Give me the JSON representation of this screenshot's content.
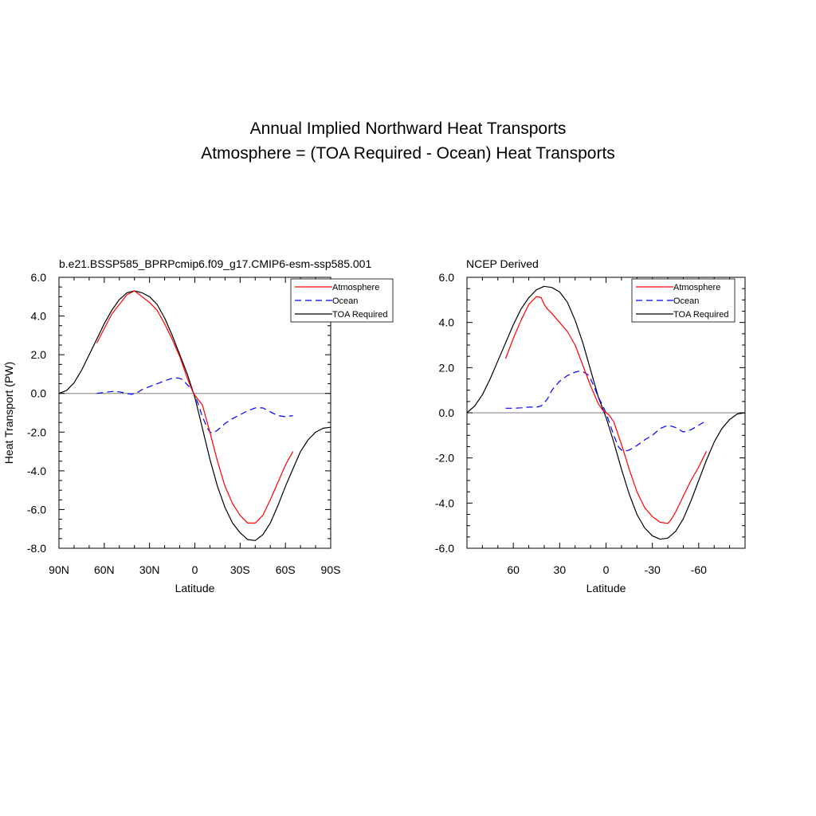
{
  "figure": {
    "title_line1": "Annual Implied Northward Heat Transports",
    "title_line2": "Atmosphere = (TOA Required - Ocean) Heat Transports"
  },
  "chart_data": [
    {
      "type": "line",
      "title": "b.e21.BSSP585_BPRPcmip6.f09_g17.CMIP6-esm-ssp585.001",
      "xlabel": "Latitude",
      "ylabel": "Heat Transport (PW)",
      "xlim": [
        90,
        -90
      ],
      "ylim": [
        -8,
        6
      ],
      "xticks": [
        90,
        60,
        30,
        0,
        -30,
        -60,
        -90
      ],
      "xtick_labels": [
        "90N",
        "60N",
        "30N",
        "0",
        "30S",
        "60S",
        "90S"
      ],
      "yticks": [
        6,
        4,
        2,
        0,
        -2,
        -4,
        -6,
        -8
      ],
      "ytick_labels": [
        "6.0",
        "4.0",
        "2.0",
        "0.0",
        "-2.0",
        "-4.0",
        "-6.0",
        "-8.0"
      ],
      "zero_line": true,
      "legend_position": "top-right",
      "series": [
        {
          "name": "Atmosphere",
          "color": "#ff0000",
          "dash": "solid",
          "x": [
            65,
            55,
            45,
            40,
            35,
            30,
            25,
            20,
            15,
            10,
            5,
            2,
            0,
            -5,
            -10,
            -15,
            -20,
            -25,
            -30,
            -35,
            -40,
            -45,
            -50,
            -55,
            -60,
            -65
          ],
          "y": [
            2.6,
            4.1,
            5.1,
            5.3,
            5.0,
            4.7,
            4.3,
            3.6,
            2.8,
            1.9,
            0.8,
            0.2,
            -0.1,
            -0.6,
            -2.0,
            -3.5,
            -4.8,
            -5.7,
            -6.3,
            -6.7,
            -6.7,
            -6.3,
            -5.5,
            -4.6,
            -3.7,
            -3.0
          ]
        },
        {
          "name": "Ocean",
          "color": "#0000ff",
          "dash": "dashed",
          "x": [
            65,
            60,
            55,
            50,
            45,
            42,
            38,
            35,
            30,
            25,
            20,
            15,
            12,
            10,
            8,
            5,
            2,
            0,
            -2,
            -5,
            -8,
            -10,
            -12,
            -15,
            -20,
            -25,
            -30,
            -35,
            -40,
            -45,
            -50,
            -55,
            -60,
            -65
          ],
          "y": [
            0.0,
            0.05,
            0.1,
            0.08,
            0.0,
            -0.05,
            0.05,
            0.2,
            0.35,
            0.5,
            0.65,
            0.78,
            0.8,
            0.78,
            0.7,
            0.45,
            0.2,
            -0.1,
            -0.5,
            -1.2,
            -1.75,
            -2.0,
            -2.05,
            -1.9,
            -1.55,
            -1.3,
            -1.1,
            -0.9,
            -0.75,
            -0.75,
            -0.95,
            -1.15,
            -1.2,
            -1.15
          ]
        },
        {
          "name": "TOA Required",
          "color": "#000000",
          "dash": "solid",
          "x": [
            90,
            85,
            80,
            75,
            70,
            65,
            60,
            55,
            50,
            45,
            40,
            35,
            30,
            25,
            20,
            15,
            10,
            5,
            0,
            -5,
            -10,
            -15,
            -20,
            -25,
            -30,
            -35,
            -40,
            -45,
            -50,
            -55,
            -60,
            -65,
            -70,
            -75,
            -80,
            -85,
            -90
          ],
          "y": [
            0.0,
            0.15,
            0.55,
            1.2,
            2.0,
            2.8,
            3.6,
            4.3,
            4.85,
            5.2,
            5.3,
            5.2,
            5.0,
            4.6,
            3.9,
            3.0,
            2.0,
            1.0,
            -0.2,
            -1.8,
            -3.4,
            -4.8,
            -5.9,
            -6.7,
            -7.2,
            -7.55,
            -7.6,
            -7.3,
            -6.7,
            -5.8,
            -4.8,
            -3.9,
            -3.0,
            -2.4,
            -2.0,
            -1.8,
            -1.75
          ]
        }
      ]
    },
    {
      "type": "line",
      "title": "NCEP Derived",
      "xlabel": "Latitude",
      "ylabel": "",
      "xlim": [
        90,
        -90
      ],
      "ylim": [
        -6,
        6
      ],
      "xticks": [
        60,
        30,
        0,
        -30,
        -60
      ],
      "xtick_labels": [
        "60",
        "30",
        "0",
        "-30",
        "-60"
      ],
      "yticks": [
        6,
        4,
        2,
        0,
        -2,
        -4,
        -6
      ],
      "ytick_labels": [
        "6.0",
        "4.0",
        "2.0",
        "0.0",
        "-2.0",
        "-4.0",
        "-6.0"
      ],
      "zero_line": true,
      "legend_position": "top-right",
      "series": [
        {
          "name": "Atmosphere",
          "color": "#ff0000",
          "dash": "solid",
          "x": [
            65,
            60,
            55,
            50,
            45,
            42,
            40,
            38,
            35,
            30,
            25,
            20,
            15,
            10,
            5,
            2,
            0,
            -2,
            -5,
            -10,
            -15,
            -20,
            -25,
            -30,
            -35,
            -40,
            -42,
            -45,
            -50,
            -55,
            -60,
            -65
          ],
          "y": [
            2.4,
            3.3,
            4.1,
            4.8,
            5.15,
            5.1,
            4.8,
            4.6,
            4.4,
            4.0,
            3.6,
            3.0,
            2.1,
            1.2,
            0.4,
            0.1,
            0.0,
            -0.1,
            -0.4,
            -1.4,
            -2.5,
            -3.5,
            -4.2,
            -4.6,
            -4.85,
            -4.9,
            -4.75,
            -4.4,
            -3.7,
            -3.0,
            -2.4,
            -1.7
          ]
        },
        {
          "name": "Ocean",
          "color": "#0000ff",
          "dash": "dashed",
          "x": [
            65,
            60,
            55,
            50,
            45,
            42,
            38,
            35,
            30,
            25,
            20,
            17,
            15,
            12,
            10,
            8,
            5,
            2,
            0,
            -2,
            -5,
            -8,
            -10,
            -12,
            -15,
            -20,
            -25,
            -30,
            -35,
            -40,
            -45,
            -50,
            -55,
            -60,
            -65
          ],
          "y": [
            0.2,
            0.2,
            0.22,
            0.25,
            0.25,
            0.3,
            0.6,
            1.0,
            1.4,
            1.65,
            1.8,
            1.85,
            1.82,
            1.7,
            1.5,
            1.2,
            0.7,
            0.3,
            0.0,
            -0.4,
            -1.0,
            -1.5,
            -1.65,
            -1.7,
            -1.65,
            -1.45,
            -1.2,
            -1.0,
            -0.7,
            -0.55,
            -0.65,
            -0.85,
            -0.75,
            -0.55,
            -0.35
          ]
        },
        {
          "name": "TOA Required",
          "color": "#000000",
          "dash": "solid",
          "x": [
            90,
            85,
            80,
            75,
            70,
            65,
            60,
            55,
            50,
            45,
            40,
            35,
            30,
            25,
            20,
            15,
            10,
            5,
            0,
            -5,
            -10,
            -15,
            -20,
            -25,
            -30,
            -35,
            -40,
            -45,
            -50,
            -55,
            -60,
            -65,
            -70,
            -75,
            -80,
            -85,
            -90
          ],
          "y": [
            0.0,
            0.3,
            0.8,
            1.5,
            2.3,
            3.1,
            3.9,
            4.6,
            5.1,
            5.45,
            5.6,
            5.55,
            5.35,
            4.9,
            4.1,
            3.1,
            1.9,
            0.7,
            -0.2,
            -1.3,
            -2.5,
            -3.6,
            -4.5,
            -5.1,
            -5.45,
            -5.6,
            -5.55,
            -5.25,
            -4.7,
            -3.9,
            -3.0,
            -2.1,
            -1.3,
            -0.7,
            -0.3,
            -0.05,
            0.0
          ]
        }
      ]
    }
  ]
}
